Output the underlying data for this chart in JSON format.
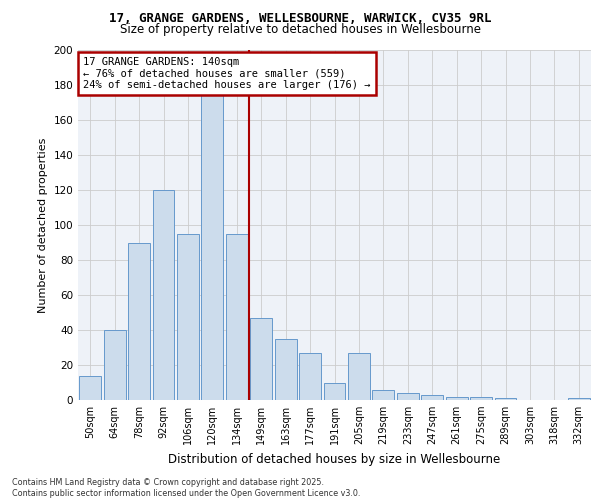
{
  "title1": "17, GRANGE GARDENS, WELLESBOURNE, WARWICK, CV35 9RL",
  "title2": "Size of property relative to detached houses in Wellesbourne",
  "xlabel": "Distribution of detached houses by size in Wellesbourne",
  "ylabel": "Number of detached properties",
  "categories": [
    "50sqm",
    "64sqm",
    "78sqm",
    "92sqm",
    "106sqm",
    "120sqm",
    "134sqm",
    "149sqm",
    "163sqm",
    "177sqm",
    "191sqm",
    "205sqm",
    "219sqm",
    "233sqm",
    "247sqm",
    "261sqm",
    "275sqm",
    "289sqm",
    "303sqm",
    "318sqm",
    "332sqm"
  ],
  "values": [
    14,
    40,
    90,
    120,
    95,
    180,
    95,
    47,
    35,
    27,
    10,
    27,
    6,
    4,
    3,
    2,
    2,
    1,
    0,
    0,
    1
  ],
  "bar_color": "#ccdcec",
  "bar_edge_color": "#6699cc",
  "vline_x": 6.5,
  "vline_color": "#aa0000",
  "annotation_text": "17 GRANGE GARDENS: 140sqm\n← 76% of detached houses are smaller (559)\n24% of semi-detached houses are larger (176) →",
  "annotation_box_edge": "#aa0000",
  "ylim": [
    0,
    200
  ],
  "yticks": [
    0,
    20,
    40,
    60,
    80,
    100,
    120,
    140,
    160,
    180,
    200
  ],
  "grid_color": "#cccccc",
  "footer": "Contains HM Land Registry data © Crown copyright and database right 2025.\nContains public sector information licensed under the Open Government Licence v3.0.",
  "bg_color": "#eef2f8"
}
